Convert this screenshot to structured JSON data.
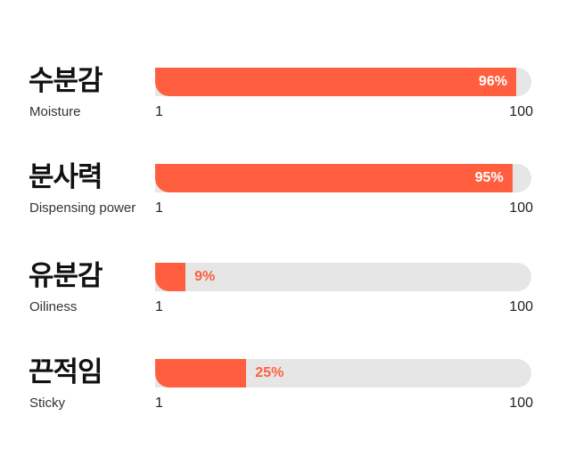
{
  "colors": {
    "accent": "#ff5f3f",
    "track": "#e6e6e6",
    "pct_inside": "#ffffff",
    "pct_outside": "#ff5f3f"
  },
  "chart_data": {
    "type": "bar",
    "orientation": "horizontal",
    "scale_min": 1,
    "scale_max": 100,
    "categories": [
      "수분감",
      "분사력",
      "유분감",
      "끈적임"
    ],
    "category_labels_en": [
      "Moisture",
      "Dispensing power",
      "Oiliness",
      "Sticky"
    ],
    "values": [
      96,
      95,
      9,
      25
    ],
    "value_labels": [
      "96%",
      "95%",
      "9%",
      "25%"
    ],
    "tick_min_label": "1",
    "tick_max_label": "100"
  }
}
